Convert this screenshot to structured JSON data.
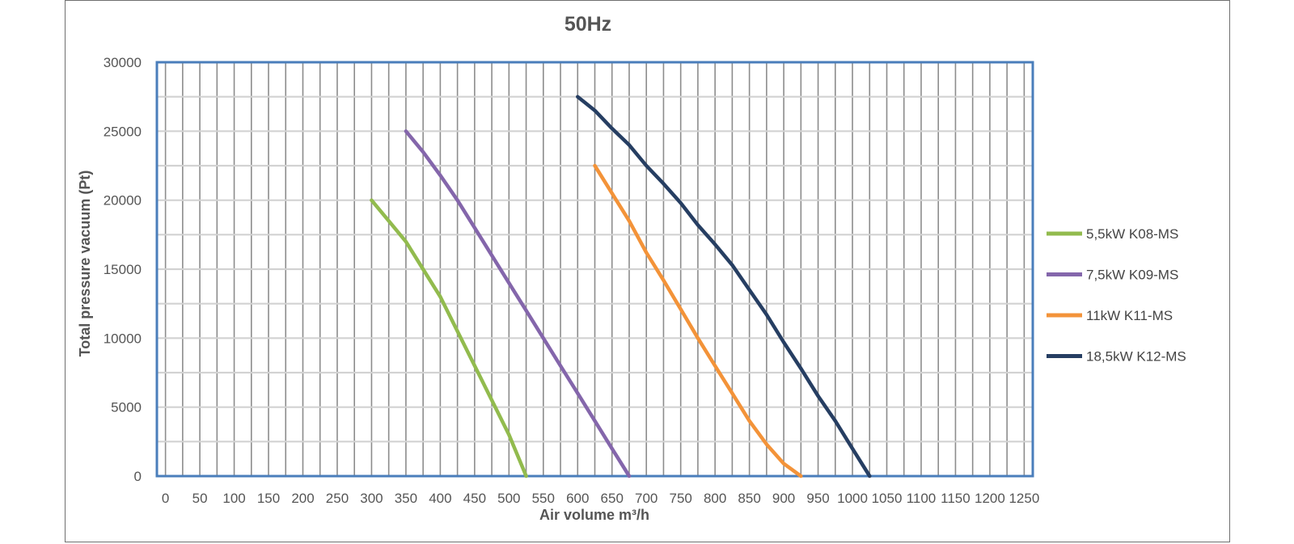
{
  "chart_data": {
    "type": "line",
    "title": "50Hz",
    "xlabel": "Air volume m³/h",
    "ylabel": "Total pressure vacuum (Pt)",
    "xlim": [
      -12.5,
      1262.5
    ],
    "ylim": [
      0,
      30000
    ],
    "x_ticks": [
      "0",
      "50",
      "100",
      "150",
      "200",
      "250",
      "300",
      "350",
      "400",
      "450",
      "500",
      "550",
      "600",
      "650",
      "700",
      "750",
      "800",
      "850",
      "900",
      "950",
      "1000",
      "1050",
      "1100",
      "1150",
      "1200",
      "1250"
    ],
    "y_ticks": [
      "0",
      "5000",
      "10000",
      "15000",
      "20000",
      "25000",
      "30000"
    ],
    "grid": true,
    "legend_position": "right",
    "series": [
      {
        "name": "5,5kW K08-MS",
        "color": "#92bb4e",
        "x": [
          300,
          325,
          350,
          375,
          400,
          425,
          450,
          475,
          500,
          515,
          525
        ],
        "y": [
          20000,
          18500,
          17000,
          15000,
          13000,
          10500,
          8000,
          5500,
          3000,
          1200,
          0
        ]
      },
      {
        "name": "7,5kW K09-MS",
        "color": "#8466ab",
        "x": [
          350,
          375,
          400,
          425,
          450,
          475,
          500,
          525,
          550,
          575,
          600,
          625,
          650,
          675
        ],
        "y": [
          25000,
          23500,
          21800,
          20000,
          18000,
          16000,
          14000,
          12000,
          10000,
          8000,
          6000,
          4000,
          2000,
          0
        ]
      },
      {
        "name": "11kW K11-MS",
        "color": "#f39339",
        "x": [
          625,
          650,
          675,
          700,
          725,
          750,
          775,
          800,
          825,
          850,
          875,
          900,
          925
        ],
        "y": [
          22500,
          20500,
          18500,
          16200,
          14200,
          12100,
          10000,
          8000,
          6000,
          4000,
          2300,
          900,
          0
        ]
      },
      {
        "name": "18,5kW K12-MS",
        "color": "#263e62",
        "x": [
          600,
          625,
          650,
          675,
          700,
          725,
          750,
          775,
          800,
          825,
          850,
          875,
          900,
          925,
          950,
          975,
          1000,
          1025
        ],
        "y": [
          27500,
          26500,
          25200,
          24000,
          22500,
          21200,
          19800,
          18200,
          16800,
          15300,
          13500,
          11700,
          9700,
          7800,
          5800,
          4000,
          2000,
          0
        ]
      }
    ]
  }
}
